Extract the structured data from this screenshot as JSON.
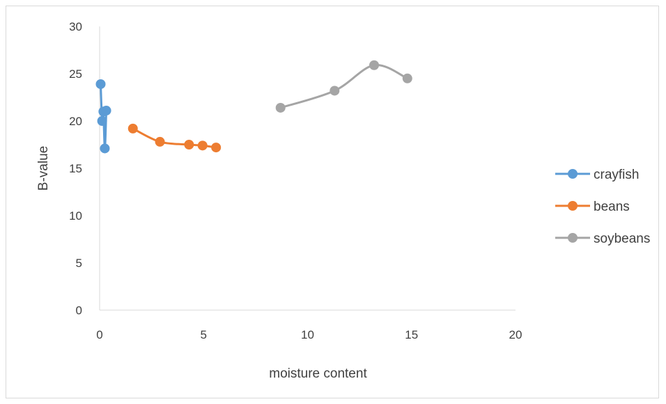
{
  "chart_data": {
    "type": "scatter",
    "xlabel": "moisture content",
    "ylabel": "B-value",
    "xlim": [
      0,
      20
    ],
    "ylim": [
      0,
      30
    ],
    "x_ticks": [
      0,
      5,
      10,
      15,
      20
    ],
    "y_ticks": [
      0,
      5,
      10,
      15,
      20,
      25,
      30
    ],
    "x_tick_labels": [
      "0",
      "5",
      "10",
      "15",
      "20"
    ],
    "y_tick_labels": [
      "0",
      "5",
      "10",
      "15",
      "20",
      "25",
      "30"
    ],
    "grid": false,
    "legend_position": "right",
    "smoothed_lines": true,
    "series": [
      {
        "name": "crayfish",
        "color": "#5b9bd5",
        "points": [
          [
            0.05,
            23.9
          ],
          [
            0.12,
            20.0
          ],
          [
            0.18,
            21.0
          ],
          [
            0.25,
            17.1
          ],
          [
            0.32,
            21.1
          ]
        ]
      },
      {
        "name": "beans",
        "color": "#ed7d31",
        "points": [
          [
            1.6,
            19.2
          ],
          [
            2.9,
            17.8
          ],
          [
            4.3,
            17.5
          ],
          [
            4.95,
            17.4
          ],
          [
            5.6,
            17.2
          ]
        ]
      },
      {
        "name": "soybeans",
        "color": "#a5a5a5",
        "points": [
          [
            8.7,
            21.4
          ],
          [
            11.3,
            23.2
          ],
          [
            13.2,
            25.9
          ],
          [
            14.8,
            24.5
          ]
        ]
      }
    ]
  }
}
